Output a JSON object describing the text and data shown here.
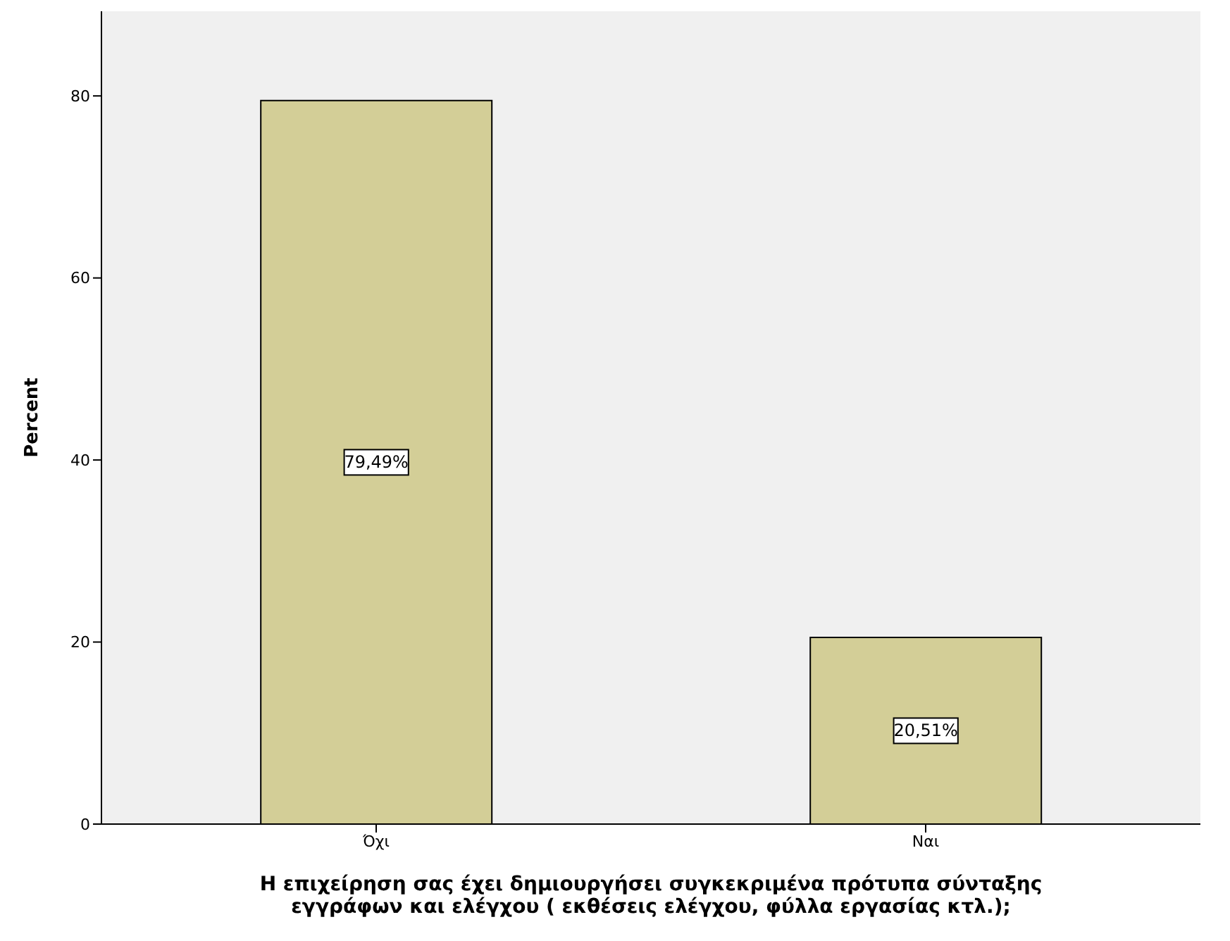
{
  "chart_data": {
    "type": "bar",
    "xlabel": "Η επιχείρηση σας έχει δημιουργήσει συγκεκριμένα πρότυπα σύνταξης εγγράφων και ελέγχου ( εκθέσεις ελέγχου, φύλλα εργασίας κτλ.);",
    "ylabel": "Percent",
    "categories": [
      "Όχι",
      "Ναι"
    ],
    "values": [
      79.49,
      20.51
    ],
    "color": "#d3ce97",
    "value_labels": [
      "79,49%",
      "20,51%"
    ],
    "ylim": [
      0,
      89.3
    ],
    "yticks": [
      0,
      20,
      40,
      60,
      80
    ],
    "grid": false
  }
}
